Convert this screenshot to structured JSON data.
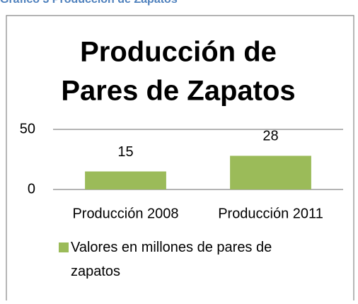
{
  "caption": "Gráfico 3 Producción de Zapatos",
  "chart_data": {
    "type": "bar",
    "title_lines": [
      "Producción de",
      "Pares de Zapatos"
    ],
    "categories": [
      "Producción 2008",
      "Producción 2011"
    ],
    "series": [
      {
        "name": "Valores en millones de pares de zapatos",
        "color": "#9bbb59",
        "values": [
          15,
          28
        ]
      }
    ],
    "ylim": [
      0,
      50
    ],
    "yticks": [
      0,
      50
    ],
    "grid": true,
    "legend": "bottom"
  }
}
